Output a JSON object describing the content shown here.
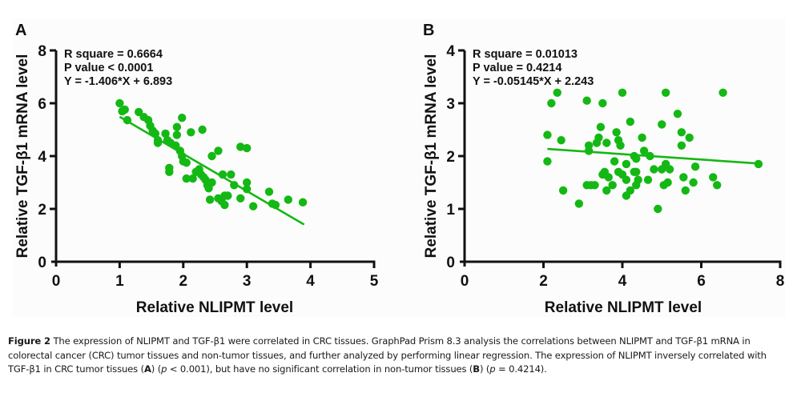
{
  "chart_data": [
    {
      "type": "scatter",
      "panel_label": "A",
      "xlabel": "Relative NLIPMT level",
      "ylabel": "Relative TGF-β1 mRNA level",
      "xlim": [
        0,
        5
      ],
      "ylim": [
        0,
        8
      ],
      "xticks": [
        "0",
        "1",
        "2",
        "3",
        "4",
        "5"
      ],
      "yticks": [
        "0",
        "2",
        "4",
        "6",
        "8"
      ],
      "grid": false,
      "point_color": "#14b814",
      "stats": [
        "R square = 0.6664",
        "P value < 0.0001",
        "Y = -1.406*X + 6.893"
      ],
      "fit": {
        "slope": -1.406,
        "intercept": 6.893,
        "x_range": [
          1.0,
          3.9
        ]
      },
      "points": [
        [
          1.0,
          6.0
        ],
        [
          1.04,
          5.7
        ],
        [
          1.08,
          5.76
        ],
        [
          1.12,
          5.36
        ],
        [
          1.3,
          5.67
        ],
        [
          1.38,
          5.48
        ],
        [
          1.45,
          5.36
        ],
        [
          1.48,
          5.15
        ],
        [
          1.52,
          4.96
        ],
        [
          1.56,
          4.85
        ],
        [
          1.6,
          4.6
        ],
        [
          1.6,
          4.5
        ],
        [
          1.72,
          4.85
        ],
        [
          1.75,
          4.6
        ],
        [
          1.8,
          4.5
        ],
        [
          1.88,
          4.4
        ],
        [
          1.95,
          4.2
        ],
        [
          1.98,
          4.0
        ],
        [
          1.78,
          3.55
        ],
        [
          1.78,
          3.4
        ],
        [
          1.9,
          5.1
        ],
        [
          1.9,
          4.8
        ],
        [
          1.98,
          5.45
        ],
        [
          2.12,
          4.9
        ],
        [
          2.0,
          3.8
        ],
        [
          2.05,
          3.75
        ],
        [
          2.05,
          3.15
        ],
        [
          2.15,
          3.15
        ],
        [
          2.2,
          3.4
        ],
        [
          2.25,
          3.5
        ],
        [
          2.28,
          3.3
        ],
        [
          2.32,
          3.2
        ],
        [
          2.35,
          3.1
        ],
        [
          2.38,
          2.9
        ],
        [
          2.4,
          2.78
        ],
        [
          2.42,
          2.35
        ],
        [
          2.3,
          5.0
        ],
        [
          2.45,
          4.0
        ],
        [
          2.55,
          4.2
        ],
        [
          2.45,
          3.0
        ],
        [
          2.55,
          2.4
        ],
        [
          2.6,
          2.35
        ],
        [
          2.65,
          2.5
        ],
        [
          2.65,
          2.15
        ],
        [
          2.6,
          2.3
        ],
        [
          2.7,
          2.5
        ],
        [
          2.62,
          3.3
        ],
        [
          2.75,
          3.3
        ],
        [
          2.8,
          2.9
        ],
        [
          2.9,
          4.35
        ],
        [
          3.0,
          4.3
        ],
        [
          2.9,
          2.4
        ],
        [
          3.0,
          3.0
        ],
        [
          3.0,
          2.75
        ],
        [
          3.1,
          2.1
        ],
        [
          3.35,
          2.65
        ],
        [
          3.4,
          2.2
        ],
        [
          3.45,
          2.15
        ],
        [
          3.65,
          2.35
        ],
        [
          3.88,
          2.25
        ]
      ]
    },
    {
      "type": "scatter",
      "panel_label": "B",
      "xlabel": "Relative NLIPMT level",
      "ylabel": "Relative TGF-β1 mRNA level",
      "xlim": [
        0,
        8
      ],
      "ylim": [
        0,
        4
      ],
      "xticks": [
        "0",
        "2",
        "4",
        "6",
        "8"
      ],
      "yticks": [
        "0",
        "1",
        "2",
        "3",
        "4"
      ],
      "grid": false,
      "point_color": "#14b814",
      "stats": [
        "R square = 0.01013",
        "P value = 0.4214",
        "Y = -0.05145*X + 2.243"
      ],
      "fit": {
        "slope": -0.05145,
        "intercept": 2.243,
        "x_range": [
          2.1,
          7.5
        ]
      },
      "points": [
        [
          2.1,
          2.4
        ],
        [
          2.1,
          1.9
        ],
        [
          2.2,
          3.0
        ],
        [
          2.35,
          3.2
        ],
        [
          2.45,
          2.3
        ],
        [
          2.5,
          1.35
        ],
        [
          2.9,
          1.1
        ],
        [
          3.1,
          3.05
        ],
        [
          3.15,
          2.2
        ],
        [
          3.15,
          2.1
        ],
        [
          3.1,
          1.45
        ],
        [
          3.3,
          1.45
        ],
        [
          3.35,
          2.25
        ],
        [
          3.4,
          2.35
        ],
        [
          3.45,
          2.55
        ],
        [
          3.5,
          3.0
        ],
        [
          3.5,
          1.65
        ],
        [
          3.55,
          1.7
        ],
        [
          3.6,
          2.25
        ],
        [
          3.65,
          1.6
        ],
        [
          3.6,
          1.35
        ],
        [
          3.75,
          1.45
        ],
        [
          3.8,
          1.9
        ],
        [
          3.85,
          2.45
        ],
        [
          3.9,
          2.3
        ],
        [
          3.95,
          2.2
        ],
        [
          3.9,
          1.7
        ],
        [
          4.0,
          1.65
        ],
        [
          4.0,
          3.2
        ],
        [
          4.1,
          1.85
        ],
        [
          4.1,
          1.55
        ],
        [
          4.1,
          1.25
        ],
        [
          4.2,
          2.65
        ],
        [
          4.2,
          1.35
        ],
        [
          4.3,
          2.0
        ],
        [
          4.3,
          1.7
        ],
        [
          4.35,
          1.95
        ],
        [
          4.35,
          1.7
        ],
        [
          4.35,
          1.45
        ],
        [
          4.5,
          2.35
        ],
        [
          4.55,
          2.1
        ],
        [
          4.65,
          1.55
        ],
        [
          4.7,
          2.0
        ],
        [
          4.8,
          1.75
        ],
        [
          4.9,
          1.0
        ],
        [
          5.0,
          1.75
        ],
        [
          5.05,
          1.45
        ],
        [
          5.1,
          3.2
        ],
        [
          5.1,
          1.85
        ],
        [
          5.15,
          1.5
        ],
        [
          5.4,
          2.8
        ],
        [
          5.5,
          2.2
        ],
        [
          5.5,
          2.45
        ],
        [
          5.55,
          1.6
        ],
        [
          5.7,
          2.35
        ],
        [
          5.8,
          1.5
        ],
        [
          5.85,
          1.8
        ],
        [
          6.3,
          1.6
        ],
        [
          6.4,
          1.45
        ],
        [
          6.55,
          3.2
        ],
        [
          7.45,
          1.85
        ],
        [
          5.2,
          1.75
        ],
        [
          5.0,
          2.6
        ],
        [
          4.4,
          1.55
        ],
        [
          3.2,
          1.45
        ],
        [
          5.6,
          1.35
        ]
      ]
    }
  ],
  "caption": {
    "figure_label": "Figure 2",
    "line1": " The expression of NLIPMT and TGF-β1 were correlated in CRC tissues. GraphPad Prism 8.3 analysis the correlations between NLIPMT and TGF-β1 mRNA in",
    "line2": "colorectal cancer (CRC) tumor tissues and non-tumor tissues, and further analyzed by performing linear regression. The expression of NLIPMT inversely correlated with",
    "line3_a": "TGF-β1 in CRC tumor tissues (",
    "line3_A": "A",
    "line3_b": ") (",
    "line3_p1": "p",
    "line3_c": " < 0.001), but have no significant correlation in non-tumor tissues (",
    "line3_B": "B",
    "line3_d": ") (",
    "line3_p2": "p",
    "line3_e": " = 0.4214)."
  }
}
